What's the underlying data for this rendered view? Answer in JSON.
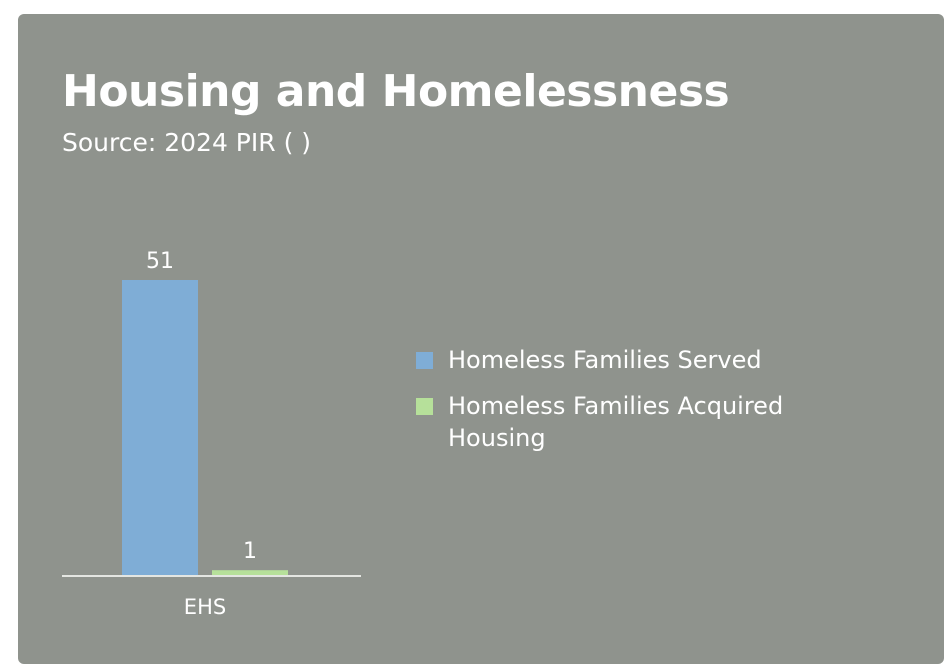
{
  "header": {
    "title": "Housing and Homelessness",
    "subtitle": "Source: 2024 PIR ( )"
  },
  "colors": {
    "background": "#8f938d",
    "text": "#ffffff",
    "axis": "#e4e6e2"
  },
  "chart_data": {
    "type": "bar",
    "categories": [
      "EHS"
    ],
    "series": [
      {
        "name": "Homeless Families Served",
        "values": [
          51
        ],
        "color": "#7fadd6"
      },
      {
        "name": "Homeless Families Acquired Housing",
        "values": [
          1
        ],
        "color": "#b6e09a"
      }
    ],
    "ylim": [
      0,
      51
    ],
    "grid": false,
    "legend_position": "right",
    "data_labels": true
  }
}
